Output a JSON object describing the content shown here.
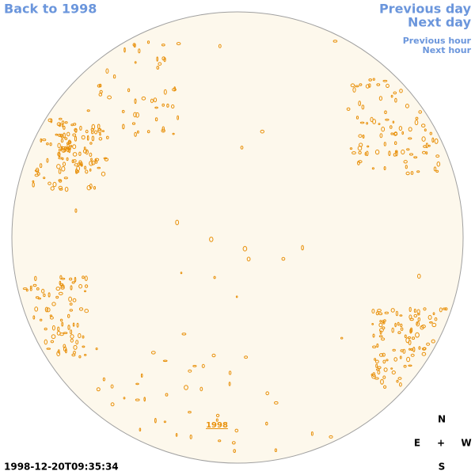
{
  "nav": {
    "back_year": "Back to 1998",
    "previous_day": "Previous day",
    "next_day": "Next day",
    "previous_hour": "Previous hour",
    "next_hour": "Next hour"
  },
  "disk_label": "1998",
  "timestamp": "1998-12-20T09:35:34",
  "compass": {
    "north": "N",
    "east": "E",
    "center": "+",
    "west": "W",
    "south": "S"
  }
}
